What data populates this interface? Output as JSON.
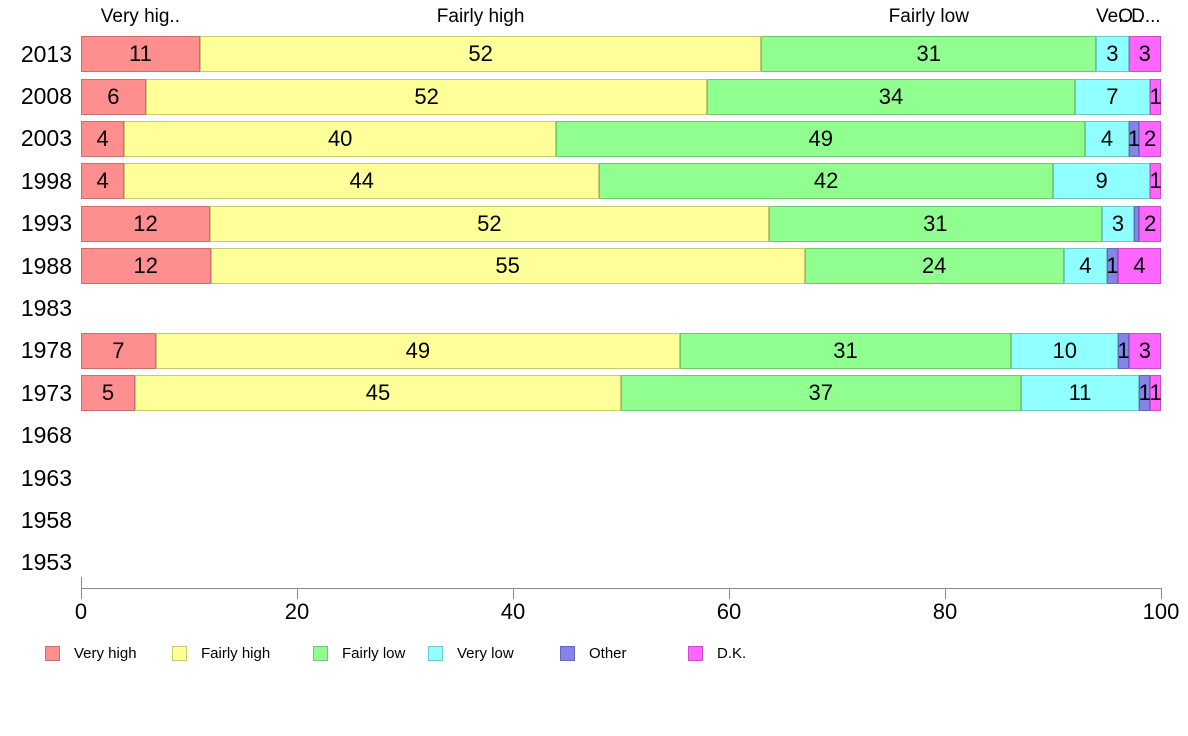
{
  "chart_data": {
    "type": "bar",
    "orientation": "horizontal",
    "stacked": true,
    "title": "",
    "xlabel": "",
    "ylabel": "",
    "xlim": [
      0,
      100
    ],
    "x_ticks": [
      0,
      20,
      40,
      60,
      80,
      100
    ],
    "grid": false,
    "legend_position": "bottom",
    "categories": [
      "2013",
      "2008",
      "2003",
      "1998",
      "1993",
      "1988",
      "1983",
      "1978",
      "1973",
      "1968",
      "1963",
      "1958",
      "1953"
    ],
    "series": [
      {
        "name": "Very high",
        "color": "#FF8F8F",
        "border_color": "#c96f6f",
        "values": [
          11,
          6,
          4,
          4,
          12,
          12,
          null,
          7,
          5,
          null,
          null,
          null,
          null
        ]
      },
      {
        "name": "Fairly high",
        "color": "#FFFF99",
        "border_color": "#c9c96f",
        "values": [
          52,
          52,
          40,
          44,
          52,
          55,
          null,
          49,
          45,
          null,
          null,
          null,
          null
        ]
      },
      {
        "name": "Fairly low",
        "color": "#90FF90",
        "border_color": "#6fc96f",
        "values": [
          31,
          34,
          49,
          42,
          31,
          24,
          null,
          31,
          37,
          null,
          null,
          null,
          null
        ]
      },
      {
        "name": "Very low",
        "color": "#8FFFFF",
        "border_color": "#6fc9c9",
        "values": [
          3,
          7,
          4,
          9,
          3,
          4,
          null,
          10,
          11,
          null,
          null,
          null,
          null
        ]
      },
      {
        "name": "Other",
        "color": "#8585E8",
        "border_color": "#6767ba",
        "values": [
          0,
          0,
          1,
          0,
          0.5,
          1,
          null,
          1,
          1,
          null,
          null,
          null,
          null
        ]
      },
      {
        "name": "D.K.",
        "color": "#FF66FF",
        "border_color": "#c94fc9",
        "values": [
          3,
          1,
          2,
          1,
          2,
          4,
          null,
          3,
          1,
          null,
          null,
          null,
          null
        ]
      }
    ],
    "column_headers": [
      {
        "text": "Very hig..",
        "x": 5.5
      },
      {
        "text": "Fairly high",
        "x": 37
      },
      {
        "text": "Fairly low",
        "x": 78.5
      },
      {
        "text": "Ve..",
        "x": 95.5
      },
      {
        "text": "O..",
        "x": 97.2
      },
      {
        "text": "D...",
        "x": 98.6
      }
    ]
  },
  "legend": {
    "items": [
      "Very high",
      "Fairly high",
      "Fairly low",
      "Very low",
      "Other",
      "D.K."
    ]
  }
}
